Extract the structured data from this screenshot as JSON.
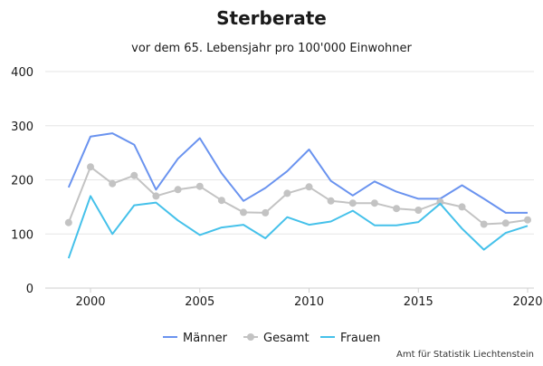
{
  "chart_data": {
    "type": "line",
    "title": "Sterberate",
    "subtitle": "vor dem 65. Lebensjahr pro 100'000 Einwohner",
    "xlabel": "",
    "ylabel": "",
    "ylim": [
      0,
      400
    ],
    "xlim": [
      1999,
      2020
    ],
    "yticks": [
      0,
      100,
      200,
      300,
      400
    ],
    "xticks": [
      2000,
      2005,
      2010,
      2015,
      2020
    ],
    "grid": true,
    "legend_position": "bottom",
    "x": [
      1999,
      2000,
      2001,
      2002,
      2003,
      2004,
      2005,
      2006,
      2007,
      2008,
      2009,
      2010,
      2011,
      2012,
      2013,
      2014,
      2015,
      2016,
      2017,
      2018,
      2019,
      2020
    ],
    "series": [
      {
        "name": "Männer",
        "color": "#6a93ef",
        "markers": false,
        "values": [
          186,
          280,
          286,
          265,
          182,
          239,
          277,
          212,
          161,
          185,
          216,
          256,
          198,
          171,
          197,
          178,
          165,
          165,
          190,
          165,
          139,
          139
        ]
      },
      {
        "name": "Gesamt",
        "color": "#c3c3c3",
        "markers": true,
        "values": [
          121,
          224,
          193,
          208,
          170,
          182,
          188,
          162,
          140,
          139,
          175,
          187,
          161,
          157,
          157,
          147,
          144,
          159,
          150,
          118,
          120,
          126
        ]
      },
      {
        "name": "Frauen",
        "color": "#45c1ea",
        "markers": false,
        "values": [
          55,
          170,
          100,
          153,
          158,
          125,
          98,
          112,
          117,
          92,
          131,
          117,
          123,
          143,
          116,
          116,
          122,
          156,
          110,
          71,
          102,
          115
        ]
      }
    ],
    "source": "Amt für Statistik Liechtenstein"
  }
}
